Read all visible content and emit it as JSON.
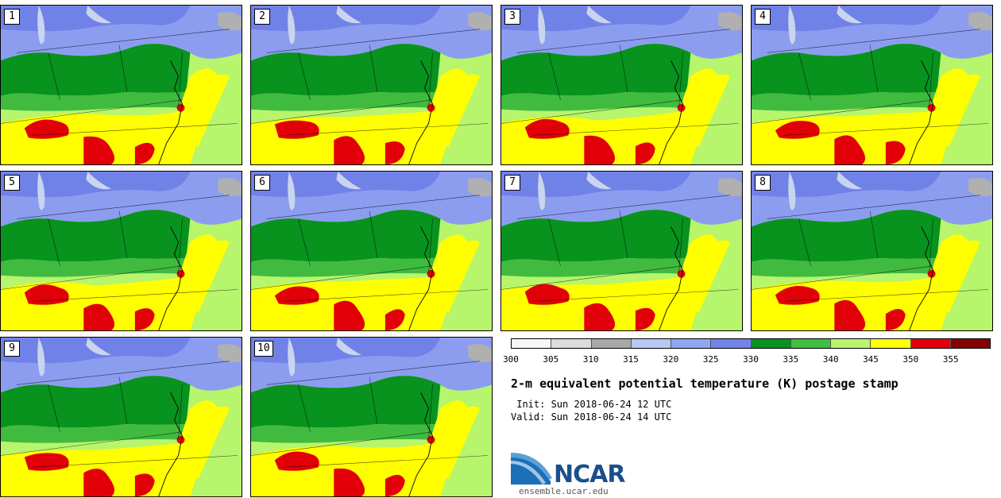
{
  "title": "2-m equivalent potential temperature (K) postage stamp",
  "init": " Init: Sun 2018-06-24 12 UTC",
  "valid": "Valid: Sun 2018-06-24 14 UTC",
  "logo_text": "NCAR",
  "website": "ensemble.ucar.edu",
  "panels": [
    {
      "label": "1"
    },
    {
      "label": "2"
    },
    {
      "label": "3"
    },
    {
      "label": "4"
    },
    {
      "label": "5"
    },
    {
      "label": "6"
    },
    {
      "label": "7"
    },
    {
      "label": "8"
    },
    {
      "label": "9"
    },
    {
      "label": "10"
    }
  ],
  "colorbar": {
    "ticks": [
      "300",
      "305",
      "310",
      "315",
      "320",
      "325",
      "330",
      "335",
      "340",
      "345",
      "350",
      "355"
    ],
    "colors": [
      "#f6f6f6",
      "#dcdcdc",
      "#a8a8a8",
      "#b9c8f4",
      "#8fa6f2",
      "#7084ea",
      "#07931f",
      "#3fbe3f",
      "#b7f56f",
      "#ffff0a",
      "#e4000c",
      "#850101"
    ]
  },
  "colors": {
    "lake": "#c9d4ee",
    "cool": "#8c9df0",
    "cold": "#7082e8",
    "dkgreen": "#08921e",
    "green": "#40bb40",
    "ltgreen": "#b6f56c",
    "yellow": "#ffff00",
    "red": "#e20008",
    "gray": "#b0b0b0"
  }
}
